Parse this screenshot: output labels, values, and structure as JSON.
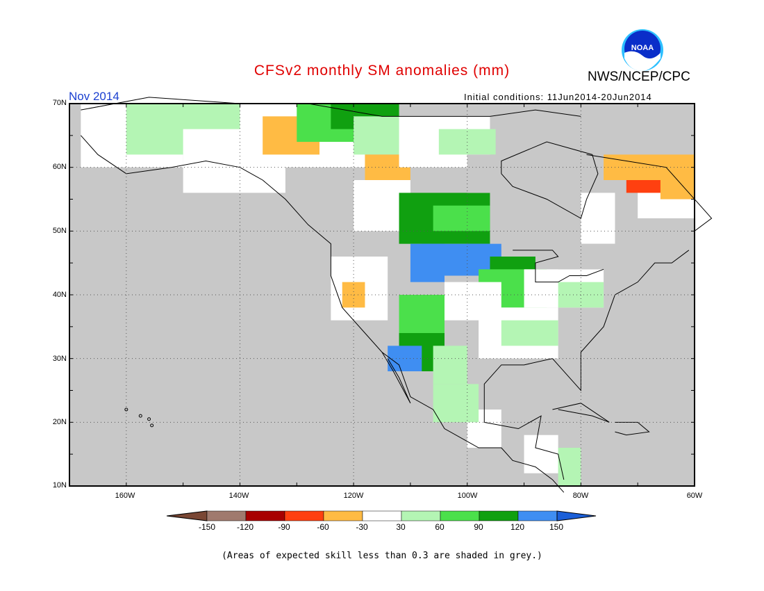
{
  "title": "CFSv2 monthly SM anomalies (mm)",
  "organization": "NWS/NCEP/CPC",
  "valid_month": "Nov 2014",
  "initial_conditions": "Initial conditions: 11Jun2014-20Jun2014",
  "logo_text": "NOAA",
  "lat_labels": [
    "70N",
    "60N",
    "50N",
    "40N",
    "30N",
    "20N",
    "10N"
  ],
  "lon_labels": [
    "160W",
    "140W",
    "120W",
    "100W",
    "80W",
    "60W"
  ],
  "colorbar": {
    "labels": [
      "-150",
      "-120",
      "-90",
      "-60",
      "-30",
      "30",
      "60",
      "90",
      "120",
      "150"
    ],
    "colors": [
      "#7a4734",
      "#a07a6e",
      "#a80000",
      "#ff4010",
      "#ffbb44",
      "#ffffff",
      "#b4f5b4",
      "#4be04b",
      "#10a010",
      "#3f8ef2",
      "#1b5fd8"
    ]
  },
  "grey_color": "#c8c8c8",
  "footnote": "(Areas of expected skill less than 0.3 are shaded in grey.)"
}
